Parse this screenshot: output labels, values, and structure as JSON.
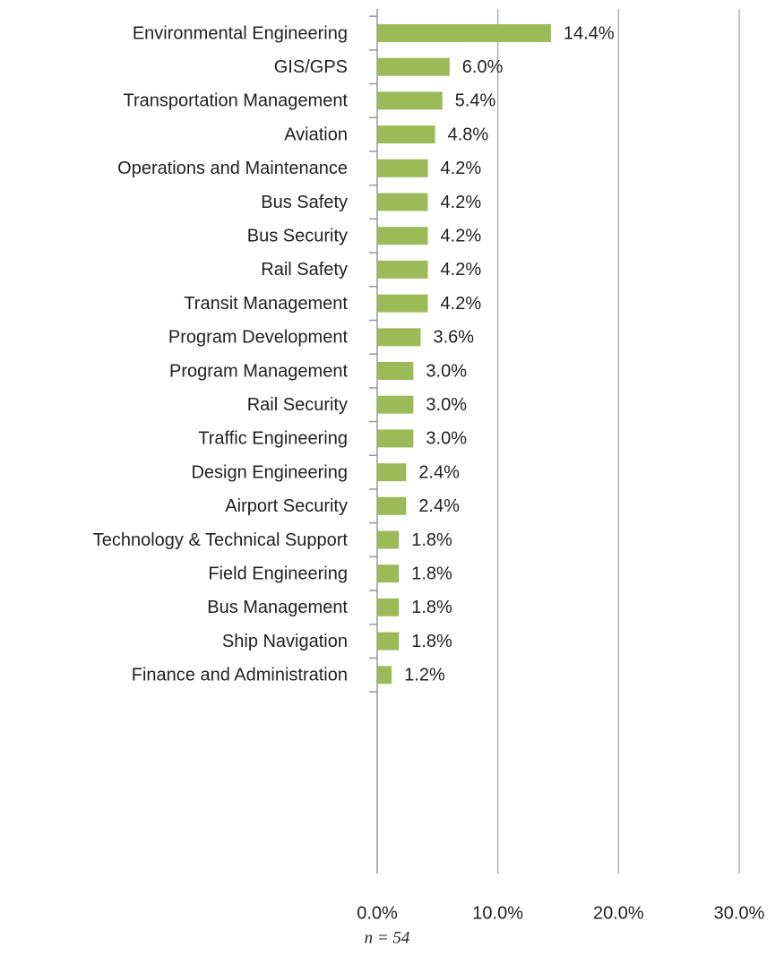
{
  "chart_data": {
    "type": "bar",
    "orientation": "horizontal",
    "categories": [
      "Environmental Engineering",
      "GIS/GPS",
      "Transportation Management",
      "Aviation",
      "Operations and Maintenance",
      "Bus Safety",
      "Bus Security",
      "Rail Safety",
      "Transit Management",
      "Program Development",
      "Program Management",
      "Rail Security",
      "Traffic Engineering",
      "Design Engineering",
      "Airport Security",
      "Technology & Technical Support",
      "Field Engineering",
      "Bus Management",
      "Ship Navigation",
      "Finance and Administration"
    ],
    "values": [
      14.4,
      6.0,
      5.4,
      4.8,
      4.2,
      4.2,
      4.2,
      4.2,
      4.2,
      3.6,
      3.0,
      3.0,
      3.0,
      2.4,
      2.4,
      1.8,
      1.8,
      1.8,
      1.8,
      1.2
    ],
    "value_labels": [
      "14.4%",
      "6.0%",
      "5.4%",
      "4.8%",
      "4.2%",
      "4.2%",
      "4.2%",
      "4.2%",
      "4.2%",
      "3.6%",
      "3.0%",
      "3.0%",
      "3.0%",
      "2.4%",
      "2.4%",
      "1.8%",
      "1.8%",
      "1.8%",
      "1.8%",
      "1.2%"
    ],
    "color": "#9bbb59",
    "xlim": [
      0,
      30
    ],
    "xticks": [
      {
        "value": 0,
        "label": "0.0%"
      },
      {
        "value": 10,
        "label": "10.0%"
      },
      {
        "value": 20,
        "label": "20.0%"
      },
      {
        "value": 30,
        "label": "30.0%"
      }
    ],
    "grid": true,
    "footnote": "n = 54"
  }
}
